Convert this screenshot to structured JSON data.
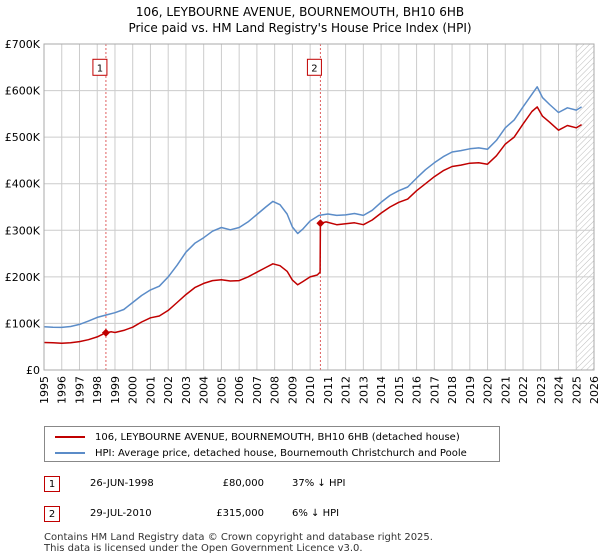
{
  "chart_data": {
    "type": "line",
    "title": "106, LEYBOURNE AVENUE, BOURNEMOUTH, BH10 6HB",
    "subtitle": "Price paid vs. HM Land Registry's House Price Index (HPI)",
    "xlim": [
      1995,
      2026
    ],
    "ylim": [
      0,
      700000
    ],
    "x_ticks": [
      1995,
      1996,
      1997,
      1998,
      1999,
      2000,
      2001,
      2002,
      2003,
      2004,
      2005,
      2006,
      2007,
      2008,
      2009,
      2010,
      2011,
      2012,
      2013,
      2014,
      2015,
      2016,
      2017,
      2018,
      2019,
      2020,
      2021,
      2022,
      2023,
      2024,
      2025,
      2026
    ],
    "y_ticks": [
      {
        "value": 0,
        "label": "£0"
      },
      {
        "value": 100000,
        "label": "£100K"
      },
      {
        "value": 200000,
        "label": "£200K"
      },
      {
        "value": 300000,
        "label": "£300K"
      },
      {
        "value": 400000,
        "label": "£400K"
      },
      {
        "value": 500000,
        "label": "£500K"
      },
      {
        "value": 600000,
        "label": "£600K"
      },
      {
        "value": 700000,
        "label": "£700K"
      }
    ],
    "grid": true,
    "future_hatch_start": 2025.0,
    "series": [
      {
        "name": "106, LEYBOURNE AVENUE, BOURNEMOUTH, BH10 6HB (detached house)",
        "color": "#c00000",
        "points": [
          [
            1995.0,
            59000
          ],
          [
            1995.5,
            58500
          ],
          [
            1996.0,
            57500
          ],
          [
            1996.5,
            58500
          ],
          [
            1997.0,
            61000
          ],
          [
            1997.5,
            65000
          ],
          [
            1998.0,
            71000
          ],
          [
            1998.49,
            80000
          ],
          [
            1998.8,
            82000
          ],
          [
            1999.0,
            80500
          ],
          [
            1999.5,
            85000
          ],
          [
            2000.0,
            92000
          ],
          [
            2000.5,
            103000
          ],
          [
            2001.0,
            112000
          ],
          [
            2001.5,
            116000
          ],
          [
            2002.0,
            128000
          ],
          [
            2002.5,
            145000
          ],
          [
            2003.0,
            162000
          ],
          [
            2003.5,
            177000
          ],
          [
            2004.0,
            186000
          ],
          [
            2004.5,
            192000
          ],
          [
            2005.0,
            194000
          ],
          [
            2005.5,
            191000
          ],
          [
            2006.0,
            192000
          ],
          [
            2006.5,
            200000
          ],
          [
            2007.0,
            210000
          ],
          [
            2007.5,
            220000
          ],
          [
            2007.9,
            228000
          ],
          [
            2008.3,
            224000
          ],
          [
            2008.7,
            212000
          ],
          [
            2009.0,
            193000
          ],
          [
            2009.3,
            183000
          ],
          [
            2009.6,
            190000
          ],
          [
            2010.0,
            200000
          ],
          [
            2010.4,
            204000
          ],
          [
            2010.56,
            210000
          ],
          [
            2010.58,
            315000
          ],
          [
            2010.9,
            318000
          ],
          [
            2011.5,
            312000
          ],
          [
            2012.0,
            314000
          ],
          [
            2012.5,
            316000
          ],
          [
            2013.0,
            312000
          ],
          [
            2013.5,
            322000
          ],
          [
            2014.0,
            337000
          ],
          [
            2014.5,
            350000
          ],
          [
            2015.0,
            360000
          ],
          [
            2015.5,
            367000
          ],
          [
            2016.0,
            385000
          ],
          [
            2016.5,
            400000
          ],
          [
            2017.0,
            415000
          ],
          [
            2017.5,
            428000
          ],
          [
            2018.0,
            437000
          ],
          [
            2018.5,
            440000
          ],
          [
            2019.0,
            444000
          ],
          [
            2019.5,
            445000
          ],
          [
            2020.0,
            442000
          ],
          [
            2020.5,
            460000
          ],
          [
            2021.0,
            485000
          ],
          [
            2021.5,
            500000
          ],
          [
            2022.0,
            528000
          ],
          [
            2022.5,
            555000
          ],
          [
            2022.8,
            565000
          ],
          [
            2023.1,
            545000
          ],
          [
            2023.5,
            532000
          ],
          [
            2024.0,
            515000
          ],
          [
            2024.5,
            525000
          ],
          [
            2025.0,
            520000
          ],
          [
            2025.3,
            527000
          ]
        ]
      },
      {
        "name": "HPI: Average price, detached house, Bournemouth Christchurch and Poole",
        "color": "#5b8cc8",
        "points": [
          [
            1995.0,
            93000
          ],
          [
            1995.5,
            92000
          ],
          [
            1996.0,
            91500
          ],
          [
            1996.5,
            93500
          ],
          [
            1997.0,
            98000
          ],
          [
            1997.5,
            105000
          ],
          [
            1998.0,
            113000
          ],
          [
            1998.5,
            118000
          ],
          [
            1999.0,
            123000
          ],
          [
            1999.5,
            130000
          ],
          [
            2000.0,
            145000
          ],
          [
            2000.5,
            160000
          ],
          [
            2001.0,
            172000
          ],
          [
            2001.5,
            180000
          ],
          [
            2002.0,
            200000
          ],
          [
            2002.5,
            225000
          ],
          [
            2003.0,
            253000
          ],
          [
            2003.5,
            272000
          ],
          [
            2004.0,
            284000
          ],
          [
            2004.5,
            298000
          ],
          [
            2005.0,
            306000
          ],
          [
            2005.5,
            301000
          ],
          [
            2006.0,
            306000
          ],
          [
            2006.5,
            318000
          ],
          [
            2007.0,
            334000
          ],
          [
            2007.5,
            350000
          ],
          [
            2007.9,
            362000
          ],
          [
            2008.3,
            355000
          ],
          [
            2008.7,
            335000
          ],
          [
            2009.0,
            307000
          ],
          [
            2009.3,
            293000
          ],
          [
            2009.6,
            303000
          ],
          [
            2010.0,
            320000
          ],
          [
            2010.5,
            332000
          ],
          [
            2011.0,
            335000
          ],
          [
            2011.5,
            332000
          ],
          [
            2012.0,
            333000
          ],
          [
            2012.5,
            336000
          ],
          [
            2013.0,
            332000
          ],
          [
            2013.5,
            343000
          ],
          [
            2014.0,
            360000
          ],
          [
            2014.5,
            375000
          ],
          [
            2015.0,
            385000
          ],
          [
            2015.5,
            393000
          ],
          [
            2016.0,
            412000
          ],
          [
            2016.5,
            430000
          ],
          [
            2017.0,
            445000
          ],
          [
            2017.5,
            458000
          ],
          [
            2018.0,
            468000
          ],
          [
            2018.5,
            471000
          ],
          [
            2019.0,
            475000
          ],
          [
            2019.5,
            477000
          ],
          [
            2020.0,
            474000
          ],
          [
            2020.5,
            493000
          ],
          [
            2021.0,
            520000
          ],
          [
            2021.5,
            537000
          ],
          [
            2022.0,
            565000
          ],
          [
            2022.5,
            592000
          ],
          [
            2022.8,
            608000
          ],
          [
            2023.1,
            585000
          ],
          [
            2023.5,
            570000
          ],
          [
            2024.0,
            553000
          ],
          [
            2024.5,
            563000
          ],
          [
            2025.0,
            558000
          ],
          [
            2025.3,
            565000
          ]
        ]
      }
    ],
    "markers": [
      {
        "label": "1",
        "x": 1998.49,
        "y": 80000
      },
      {
        "label": "2",
        "x": 2010.58,
        "y": 315000
      }
    ],
    "marker_label_value": 650000
  },
  "legend": {
    "property_label": "106, LEYBOURNE AVENUE, BOURNEMOUTH, BH10 6HB (detached house)",
    "hpi_label": "HPI: Average price, detached house, Bournemouth Christchurch and Poole"
  },
  "sales": [
    {
      "num": "1",
      "date": "26-JUN-1998",
      "price": "£80,000",
      "hpi": "37% ↓ HPI"
    },
    {
      "num": "2",
      "date": "29-JUL-2010",
      "price": "£315,000",
      "hpi": "6% ↓ HPI"
    }
  ],
  "footer": {
    "line1": "Contains HM Land Registry data © Crown copyright and database right 2025.",
    "line2": "This data is licensed under the Open Government Licence v3.0."
  },
  "colors": {
    "property": "#c00000",
    "hpi": "#5b8cc8",
    "grid": "#cccccc",
    "marker_line": "#e06060"
  }
}
